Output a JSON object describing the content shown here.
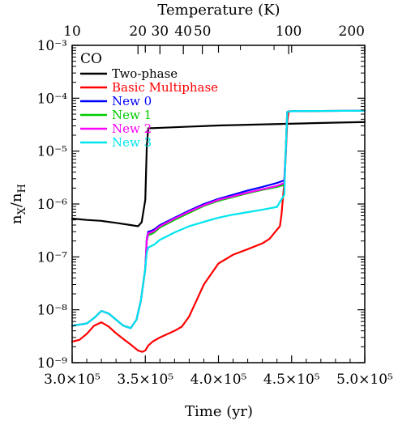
{
  "chart_data": {
    "type": "line",
    "panel_label": "CO",
    "xlabel": "Time (yr)",
    "ylabel_main": "n",
    "ylabel_sub1": "X",
    "ylabel_slash": "/n",
    "ylabel_sub2": "H",
    "top_axis_title": "Temperature (K)",
    "xlim": [
      300000,
      500000
    ],
    "ylim": [
      1e-09,
      0.001
    ],
    "yscale": "log",
    "grid": false,
    "legend_position": "top-left",
    "x_ticks": [
      {
        "value": 300000,
        "label": "3.0×10⁵"
      },
      {
        "value": 350000,
        "label": "3.5×10⁵"
      },
      {
        "value": 400000,
        "label": "4.0×10⁵"
      },
      {
        "value": 450000,
        "label": "4.5×10⁵"
      },
      {
        "value": 500000,
        "label": "5.0×10⁵"
      }
    ],
    "y_ticks": [
      {
        "value": 1e-09,
        "label": "10⁻⁹"
      },
      {
        "value": 1e-08,
        "label": "10⁻⁸"
      },
      {
        "value": 1e-07,
        "label": "10⁻⁷"
      },
      {
        "value": 1e-06,
        "label": "10⁻⁶"
      },
      {
        "value": 1e-05,
        "label": "10⁻⁵"
      },
      {
        "value": 0.0001,
        "label": "10⁻⁴"
      },
      {
        "value": 0.001,
        "label": "10⁻³"
      }
    ],
    "top_ticks": [
      {
        "time": 300000,
        "label": "10"
      },
      {
        "time": 345000,
        "label": "20"
      },
      {
        "time": 360000,
        "label": "30"
      },
      {
        "time": 376000,
        "label": "40"
      },
      {
        "time": 389000,
        "label": "50"
      },
      {
        "time": 448000,
        "label": "100"
      },
      {
        "time": 500000,
        "label": "200"
      }
    ],
    "top_minor_ticks": [
      415000,
      438000
    ],
    "series": [
      {
        "name": "Two-phase",
        "color": "#000000",
        "x": [
          300000,
          310000,
          320000,
          330000,
          340000,
          345000,
          347500,
          350000,
          351000,
          352000,
          360000,
          380000,
          400000,
          420000,
          440000,
          460000,
          480000,
          500000
        ],
        "y": [
          5.3e-07,
          5e-07,
          4.8e-07,
          4.4e-07,
          4e-07,
          3.8e-07,
          4.5e-07,
          1.2e-06,
          1.2e-05,
          2.7e-05,
          2.75e-05,
          2.9e-05,
          3.05e-05,
          3.15e-05,
          3.25e-05,
          3.35e-05,
          3.45e-05,
          3.55e-05
        ]
      },
      {
        "name": "Basic Multiphase",
        "color": "#ff0000",
        "x": [
          300000,
          305000,
          310000,
          315000,
          320000,
          325000,
          330000,
          335000,
          340000,
          345000,
          348000,
          350000,
          352000,
          355000,
          360000,
          370000,
          375000,
          380000,
          385000,
          390000,
          400000,
          410000,
          420000,
          430000,
          435000,
          438000,
          442000,
          443000,
          445000,
          446000,
          447000,
          448000
        ],
        "y": [
          2.5e-09,
          2.7e-09,
          3.5e-09,
          5e-09,
          5.8e-09,
          4.8e-09,
          3.6e-09,
          2.8e-09,
          2.2e-09,
          1.7e-09,
          1.6e-09,
          1.7e-09,
          2.1e-09,
          2.5e-09,
          3e-09,
          4e-09,
          4.8e-09,
          7.5e-09,
          1.5e-08,
          3e-08,
          7.5e-08,
          1.1e-07,
          1.4e-07,
          1.8e-07,
          2.2e-07,
          2.8e-07,
          3.8e-07,
          6e-07,
          2.5e-06,
          8e-06,
          3.5e-05,
          5.7e-05
        ]
      },
      {
        "name": "New 0",
        "color": "#0000ff",
        "x": [
          300000,
          310000,
          315000,
          320000,
          325000,
          330000,
          335000,
          340000,
          344000,
          347000,
          350000,
          351000,
          352000,
          354000,
          356000,
          360000,
          370000,
          380000,
          390000,
          400000,
          410000,
          420000,
          430000,
          440000,
          445000,
          446000,
          447000,
          448000,
          450000,
          470000,
          500000
        ],
        "y": [
          5e-09,
          5.5e-09,
          7e-09,
          9.5e-09,
          8.5e-09,
          6.5e-09,
          5e-09,
          4.5e-09,
          6.5e-09,
          1.5e-08,
          6e-08,
          2.2e-07,
          3e-07,
          3.1e-07,
          3.3e-07,
          4e-07,
          5.5e-07,
          7.5e-07,
          1e-06,
          1.25e-06,
          1.5e-06,
          1.8e-06,
          2.1e-06,
          2.5e-06,
          2.8e-06,
          1e-05,
          5.5e-05,
          5.6e-05,
          5.7e-05,
          5.75e-05,
          5.8e-05
        ]
      },
      {
        "name": "New 1",
        "color": "#00cc00",
        "x": [
          300000,
          310000,
          315000,
          320000,
          325000,
          330000,
          335000,
          340000,
          344000,
          347000,
          350000,
          351000,
          352000,
          354000,
          356000,
          360000,
          370000,
          380000,
          390000,
          400000,
          410000,
          420000,
          430000,
          440000,
          445000,
          446000,
          447000,
          448000,
          450000,
          470000,
          500000
        ],
        "y": [
          5e-09,
          5.5e-09,
          7e-09,
          9.5e-09,
          8.5e-09,
          6.5e-09,
          5e-09,
          4.5e-09,
          6.5e-09,
          1.5e-08,
          6e-08,
          2e-07,
          2.6e-07,
          2.7e-07,
          2.9e-07,
          3.6e-07,
          5e-07,
          6.8e-07,
          9.2e-07,
          1.15e-06,
          1.35e-06,
          1.6e-06,
          1.85e-06,
          2.1e-06,
          2.3e-06,
          1e-05,
          5.5e-05,
          5.6e-05,
          5.7e-05,
          5.75e-05,
          5.8e-05
        ]
      },
      {
        "name": "New 2",
        "color": "#ff00ff",
        "x": [
          300000,
          310000,
          315000,
          320000,
          325000,
          330000,
          335000,
          340000,
          344000,
          347000,
          350000,
          351000,
          352000,
          354000,
          356000,
          360000,
          370000,
          380000,
          390000,
          400000,
          410000,
          420000,
          430000,
          440000,
          445000,
          446000,
          447000,
          448000,
          450000,
          470000,
          500000
        ],
        "y": [
          5e-09,
          5.5e-09,
          7e-09,
          9.5e-09,
          8.5e-09,
          6.5e-09,
          5e-09,
          4.5e-09,
          6.5e-09,
          1.5e-08,
          6e-08,
          2.1e-07,
          2.8e-07,
          2.9e-07,
          3.1e-07,
          3.8e-07,
          5.3e-07,
          7.2e-07,
          9.5e-07,
          1.2e-06,
          1.4e-06,
          1.65e-06,
          1.9e-06,
          2.2e-06,
          2.5e-06,
          1e-05,
          5.5e-05,
          5.6e-05,
          5.7e-05,
          5.75e-05,
          5.8e-05
        ]
      },
      {
        "name": "New 3",
        "color": "#00e5ee",
        "x": [
          300000,
          310000,
          315000,
          320000,
          325000,
          330000,
          335000,
          340000,
          344000,
          347000,
          350000,
          351000,
          352000,
          354000,
          356000,
          360000,
          370000,
          380000,
          390000,
          400000,
          410000,
          420000,
          430000,
          440000,
          445000,
          446000,
          447000,
          448000,
          450000,
          470000,
          500000
        ],
        "y": [
          5e-09,
          5.5e-09,
          7e-09,
          9.5e-09,
          8.5e-09,
          6.5e-09,
          5e-09,
          4.5e-09,
          6.5e-09,
          1.5e-08,
          6e-08,
          1.2e-07,
          1.5e-07,
          1.6e-07,
          1.7e-07,
          2.1e-07,
          2.9e-07,
          3.8e-07,
          4.6e-07,
          5.5e-07,
          6.3e-07,
          7e-07,
          7.8e-07,
          8.8e-07,
          1.5e-06,
          1e-05,
          5.5e-05,
          5.6e-05,
          5.7e-05,
          5.75e-05,
          5.8e-05
        ]
      }
    ]
  }
}
